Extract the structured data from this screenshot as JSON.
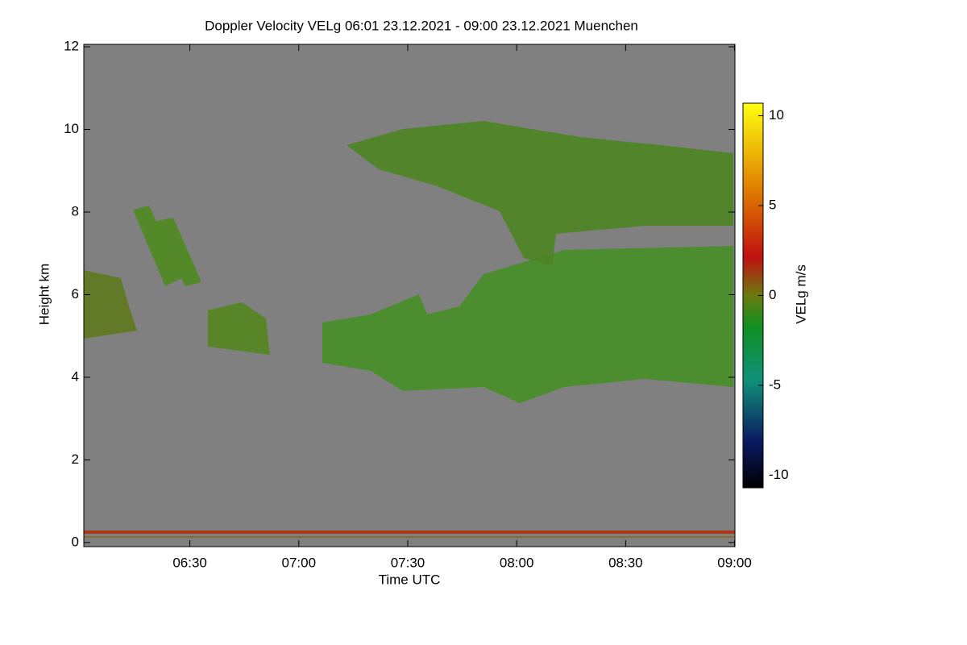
{
  "chart_data": {
    "type": "heatmap",
    "title": "Doppler Velocity VELg   06:01 23.12.2021 - 09:00 23.12.2021 Muenchen",
    "x_label": "Time UTC",
    "y_label": "Height km",
    "colorbar_label": "VELg m/s",
    "xlim": [
      360.8,
      540.1
    ],
    "xticks": [
      {
        "value": 390,
        "label": "06:30"
      },
      {
        "value": 420,
        "label": "07:00"
      },
      {
        "value": 450,
        "label": "07:30"
      },
      {
        "value": 480,
        "label": "08:00"
      },
      {
        "value": 510,
        "label": "08:30"
      },
      {
        "value": 540,
        "label": "09:00"
      }
    ],
    "ylim": [
      -0.1,
      12.06
    ],
    "yticks": [
      0,
      2,
      4,
      6,
      8,
      10,
      12
    ],
    "clim": [
      -10.7,
      10.7
    ],
    "cticks": [
      -10,
      -5,
      0,
      5,
      10
    ]
  }
}
